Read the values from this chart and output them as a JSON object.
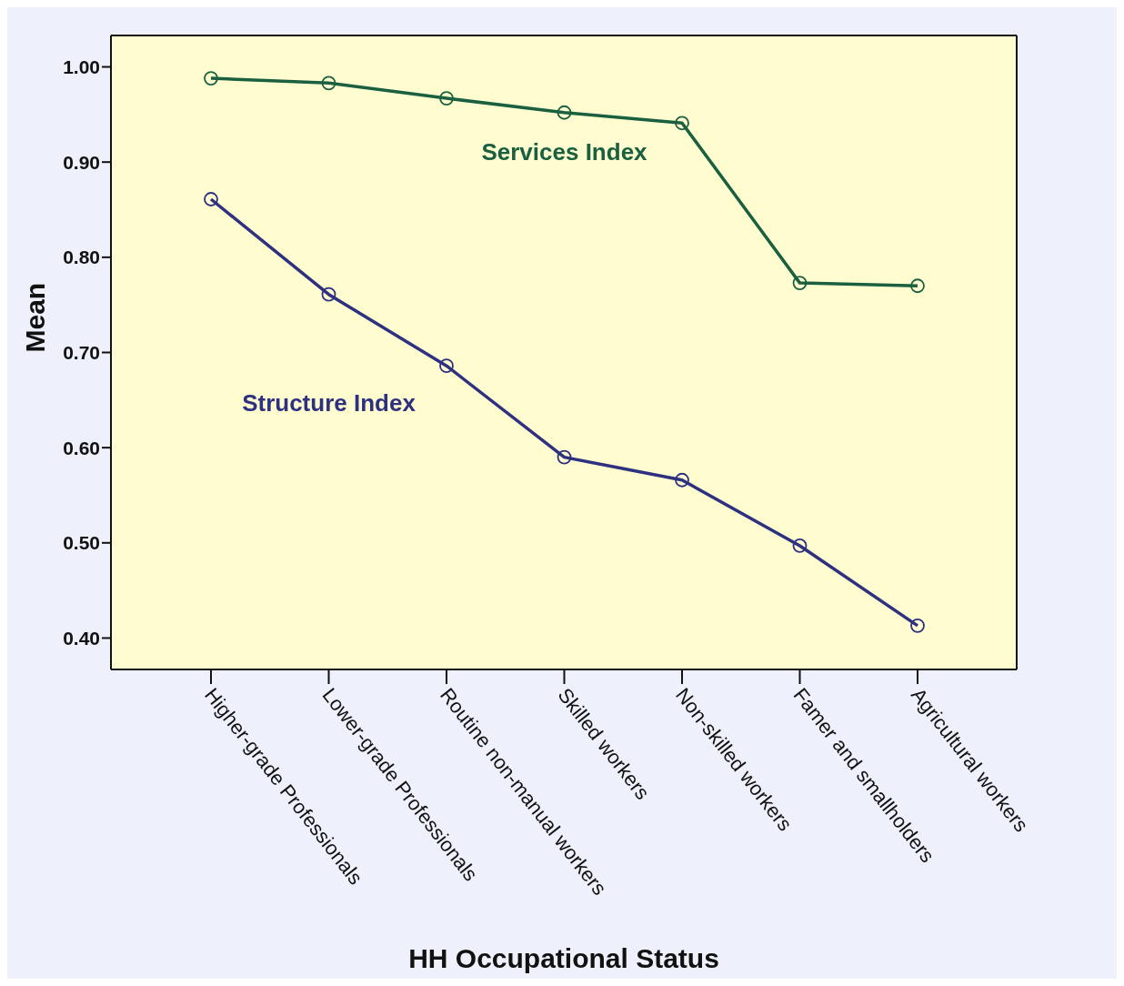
{
  "chart_data": {
    "type": "line",
    "xlabel": "HH Occupational Status",
    "ylabel": "Mean",
    "categories": [
      "Higher-grade Professionals",
      "Lower-grade Professionals",
      "Routine non-manual workers",
      "Skilled workers",
      "Non-skilled workers",
      "Famer and smallholders",
      "Agricultural workers"
    ],
    "series": [
      {
        "name": "Services Index",
        "color": "#1a6040",
        "values": [
          0.988,
          0.983,
          0.967,
          0.952,
          0.941,
          0.773,
          0.77
        ]
      },
      {
        "name": "Structure Index",
        "color": "#2e3080",
        "values": [
          0.861,
          0.761,
          0.686,
          0.59,
          0.566,
          0.497,
          0.413
        ]
      }
    ],
    "ylim": [
      0.367,
      1.033
    ],
    "yticks": [
      {
        "value": 0.4,
        "label": "0.40"
      },
      {
        "value": 0.5,
        "label": "0.50"
      },
      {
        "value": 0.6,
        "label": "0.60"
      },
      {
        "value": 0.7,
        "label": "0.70"
      },
      {
        "value": 0.8,
        "label": "0.80"
      },
      {
        "value": 0.9,
        "label": "0.90"
      },
      {
        "value": 1.0,
        "label": "1.00"
      }
    ],
    "grid": false,
    "legend": false,
    "marker": "circle",
    "line_style": "solid"
  }
}
